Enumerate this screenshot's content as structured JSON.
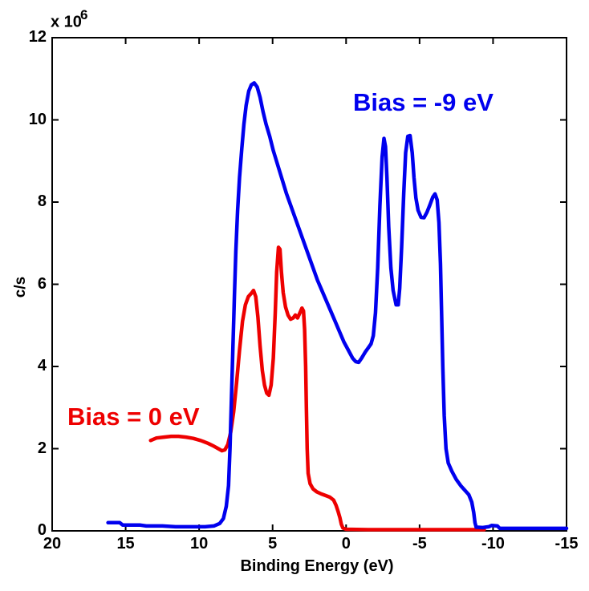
{
  "chart_data": {
    "type": "line",
    "title": "",
    "xlabel": "Binding Energy (eV)",
    "ylabel": "c/s",
    "y_exponent_prefix": "x 10",
    "y_exponent": "6",
    "xlim": [
      20,
      -15
    ],
    "ylim": [
      0,
      12
    ],
    "x_axis_reversed": true,
    "grid": false,
    "x_ticks": [
      20,
      15,
      10,
      5,
      0,
      -5,
      -10,
      -15
    ],
    "x_tick_labels": [
      "20",
      "15",
      "10",
      "5",
      "0",
      "-5",
      "-10",
      "-15"
    ],
    "y_ticks": [
      0,
      2,
      4,
      6,
      8,
      10,
      12
    ],
    "y_tick_labels": [
      "0",
      "2",
      "4",
      "6",
      "8",
      "10",
      "12"
    ],
    "axis_color": "#000000",
    "series": [
      {
        "name": "Bias = 0 eV",
        "color": "#ee0000",
        "points": [
          [
            13.3,
            2.2
          ],
          [
            12.9,
            2.26
          ],
          [
            12.4,
            2.28
          ],
          [
            11.9,
            2.3
          ],
          [
            11.4,
            2.3
          ],
          [
            10.9,
            2.28
          ],
          [
            10.4,
            2.25
          ],
          [
            9.9,
            2.2
          ],
          [
            9.4,
            2.13
          ],
          [
            9.0,
            2.06
          ],
          [
            8.7,
            2.0
          ],
          [
            8.45,
            1.95
          ],
          [
            8.25,
            1.97
          ],
          [
            8.05,
            2.1
          ],
          [
            7.85,
            2.4
          ],
          [
            7.65,
            2.9
          ],
          [
            7.45,
            3.6
          ],
          [
            7.25,
            4.4
          ],
          [
            7.05,
            5.1
          ],
          [
            6.85,
            5.5
          ],
          [
            6.65,
            5.7
          ],
          [
            6.45,
            5.78
          ],
          [
            6.3,
            5.85
          ],
          [
            6.15,
            5.7
          ],
          [
            6.0,
            5.2
          ],
          [
            5.85,
            4.5
          ],
          [
            5.7,
            3.9
          ],
          [
            5.55,
            3.55
          ],
          [
            5.4,
            3.35
          ],
          [
            5.25,
            3.3
          ],
          [
            5.1,
            3.55
          ],
          [
            4.95,
            4.2
          ],
          [
            4.82,
            5.3
          ],
          [
            4.72,
            6.3
          ],
          [
            4.6,
            6.9
          ],
          [
            4.5,
            6.85
          ],
          [
            4.4,
            6.3
          ],
          [
            4.28,
            5.8
          ],
          [
            4.12,
            5.45
          ],
          [
            3.95,
            5.25
          ],
          [
            3.78,
            5.15
          ],
          [
            3.6,
            5.18
          ],
          [
            3.45,
            5.25
          ],
          [
            3.3,
            5.18
          ],
          [
            3.15,
            5.3
          ],
          [
            3.0,
            5.42
          ],
          [
            2.9,
            5.35
          ],
          [
            2.82,
            4.9
          ],
          [
            2.75,
            4.0
          ],
          [
            2.7,
            3.0
          ],
          [
            2.65,
            2.0
          ],
          [
            2.58,
            1.4
          ],
          [
            2.45,
            1.15
          ],
          [
            2.25,
            1.02
          ],
          [
            2.0,
            0.95
          ],
          [
            1.7,
            0.9
          ],
          [
            1.4,
            0.86
          ],
          [
            1.1,
            0.82
          ],
          [
            0.85,
            0.75
          ],
          [
            0.68,
            0.62
          ],
          [
            0.55,
            0.48
          ],
          [
            0.42,
            0.32
          ],
          [
            0.32,
            0.16
          ],
          [
            0.22,
            0.07
          ],
          [
            0.0,
            0.04
          ],
          [
            -1.5,
            0.03
          ],
          [
            -3.5,
            0.03
          ],
          [
            -5.5,
            0.03
          ],
          [
            -7.5,
            0.03
          ],
          [
            -9.4,
            0.03
          ]
        ]
      },
      {
        "name": "Bias = -9 eV",
        "color": "#0000ee",
        "points": [
          [
            16.2,
            0.2
          ],
          [
            15.4,
            0.2
          ],
          [
            15.2,
            0.14
          ],
          [
            14.0,
            0.14
          ],
          [
            13.6,
            0.12
          ],
          [
            12.5,
            0.12
          ],
          [
            11.6,
            0.1
          ],
          [
            10.5,
            0.1
          ],
          [
            9.6,
            0.1
          ],
          [
            9.0,
            0.12
          ],
          [
            8.6,
            0.18
          ],
          [
            8.35,
            0.3
          ],
          [
            8.15,
            0.6
          ],
          [
            8.0,
            1.1
          ],
          [
            7.9,
            2.0
          ],
          [
            7.8,
            3.2
          ],
          [
            7.7,
            4.5
          ],
          [
            7.6,
            5.7
          ],
          [
            7.5,
            6.8
          ],
          [
            7.38,
            7.8
          ],
          [
            7.25,
            8.6
          ],
          [
            7.1,
            9.3
          ],
          [
            6.95,
            9.9
          ],
          [
            6.8,
            10.35
          ],
          [
            6.62,
            10.7
          ],
          [
            6.45,
            10.85
          ],
          [
            6.25,
            10.9
          ],
          [
            6.05,
            10.8
          ],
          [
            5.85,
            10.55
          ],
          [
            5.65,
            10.2
          ],
          [
            5.45,
            9.9
          ],
          [
            5.2,
            9.6
          ],
          [
            4.95,
            9.25
          ],
          [
            4.65,
            8.9
          ],
          [
            4.35,
            8.55
          ],
          [
            4.05,
            8.2
          ],
          [
            3.75,
            7.9
          ],
          [
            3.45,
            7.6
          ],
          [
            3.15,
            7.3
          ],
          [
            2.85,
            7.0
          ],
          [
            2.55,
            6.7
          ],
          [
            2.25,
            6.4
          ],
          [
            1.95,
            6.1
          ],
          [
            1.65,
            5.85
          ],
          [
            1.35,
            5.6
          ],
          [
            1.05,
            5.35
          ],
          [
            0.75,
            5.1
          ],
          [
            0.45,
            4.85
          ],
          [
            0.15,
            4.6
          ],
          [
            -0.15,
            4.4
          ],
          [
            -0.45,
            4.2
          ],
          [
            -0.65,
            4.12
          ],
          [
            -0.85,
            4.1
          ],
          [
            -1.05,
            4.2
          ],
          [
            -1.3,
            4.35
          ],
          [
            -1.5,
            4.45
          ],
          [
            -1.7,
            4.55
          ],
          [
            -1.85,
            4.75
          ],
          [
            -2.0,
            5.3
          ],
          [
            -2.15,
            6.4
          ],
          [
            -2.3,
            7.9
          ],
          [
            -2.45,
            9.1
          ],
          [
            -2.58,
            9.55
          ],
          [
            -2.68,
            9.35
          ],
          [
            -2.78,
            8.6
          ],
          [
            -2.9,
            7.4
          ],
          [
            -3.05,
            6.4
          ],
          [
            -3.2,
            5.85
          ],
          [
            -3.4,
            5.5
          ],
          [
            -3.55,
            5.5
          ],
          [
            -3.65,
            5.9
          ],
          [
            -3.78,
            6.9
          ],
          [
            -3.92,
            8.2
          ],
          [
            -4.05,
            9.2
          ],
          [
            -4.2,
            9.6
          ],
          [
            -4.35,
            9.62
          ],
          [
            -4.5,
            9.2
          ],
          [
            -4.62,
            8.6
          ],
          [
            -4.75,
            8.1
          ],
          [
            -4.9,
            7.8
          ],
          [
            -5.1,
            7.63
          ],
          [
            -5.3,
            7.62
          ],
          [
            -5.5,
            7.75
          ],
          [
            -5.7,
            7.93
          ],
          [
            -5.9,
            8.12
          ],
          [
            -6.05,
            8.2
          ],
          [
            -6.2,
            8.05
          ],
          [
            -6.32,
            7.5
          ],
          [
            -6.42,
            6.5
          ],
          [
            -6.5,
            5.3
          ],
          [
            -6.58,
            4.0
          ],
          [
            -6.68,
            2.8
          ],
          [
            -6.8,
            2.0
          ],
          [
            -6.95,
            1.65
          ],
          [
            -7.2,
            1.45
          ],
          [
            -7.5,
            1.25
          ],
          [
            -7.8,
            1.1
          ],
          [
            -8.1,
            0.98
          ],
          [
            -8.35,
            0.88
          ],
          [
            -8.55,
            0.7
          ],
          [
            -8.68,
            0.45
          ],
          [
            -8.77,
            0.2
          ],
          [
            -8.85,
            0.09
          ],
          [
            -9.3,
            0.08
          ],
          [
            -9.7,
            0.1
          ],
          [
            -9.9,
            0.13
          ],
          [
            -10.3,
            0.12
          ],
          [
            -10.45,
            0.06
          ],
          [
            -11.5,
            0.06
          ],
          [
            -13.0,
            0.06
          ],
          [
            -15.0,
            0.06
          ]
        ]
      }
    ],
    "annotations": [
      {
        "id": "ann-blue",
        "text": "Bias = -9 eV",
        "color": "#0000ee"
      },
      {
        "id": "ann-red",
        "text": "Bias = 0 eV",
        "color": "#ee0000"
      }
    ]
  }
}
